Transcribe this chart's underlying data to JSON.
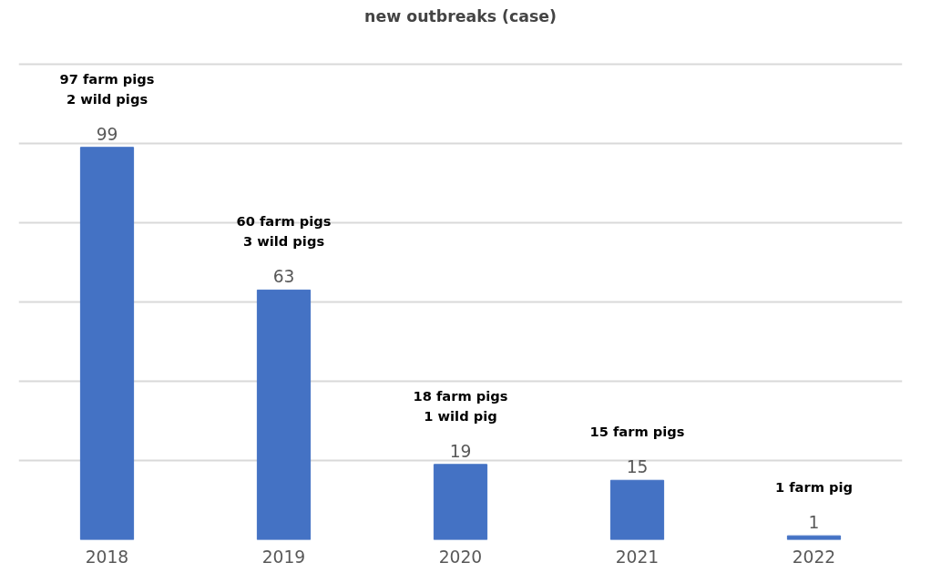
{
  "chart_data": {
    "type": "bar",
    "title": "new outbreaks (case)",
    "categories": [
      "2018",
      "2019",
      "2020",
      "2021",
      "2022"
    ],
    "series": [
      {
        "color": "#4472c4",
        "values": [
          99,
          63,
          19,
          15,
          1
        ]
      }
    ],
    "data_labels": true,
    "grid": "y",
    "tick_labels": "x",
    "annotations": [
      "97 farm pigs\n2 wild pigs",
      "60 farm pigs\n3 wild pigs",
      "18 farm pigs\n1 wild pig",
      "15 farm pigs",
      "1 farm pig"
    ]
  }
}
